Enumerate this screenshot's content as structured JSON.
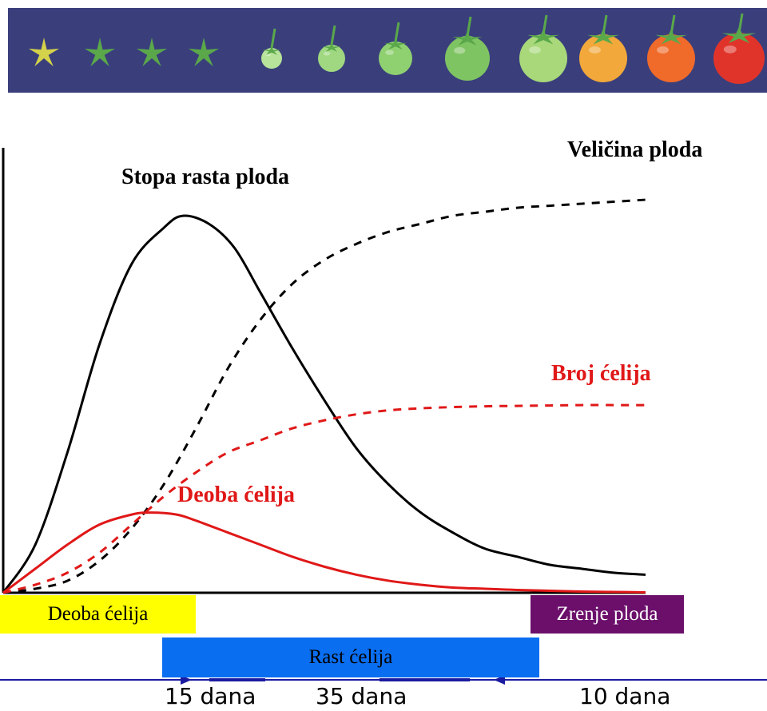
{
  "photo_strip": {
    "stages": [
      {
        "icon": "tomato-flower-icon",
        "color": "#e8e35a"
      },
      {
        "icon": "tomato-calyx-icon",
        "color": "#7fbf5a"
      },
      {
        "icon": "tomato-calyx-icon",
        "color": "#7fbf5a"
      },
      {
        "icon": "tomato-calyx-icon",
        "color": "#8ccf66"
      },
      {
        "icon": "tomato-fruit-icon",
        "color": "#b8e39a"
      },
      {
        "icon": "tomato-fruit-icon",
        "color": "#9fd880"
      },
      {
        "icon": "tomato-fruit-icon",
        "color": "#8fd070"
      },
      {
        "icon": "tomato-fruit-icon",
        "color": "#7fc462"
      },
      {
        "icon": "tomato-fruit-icon",
        "color": "#a8d87a"
      },
      {
        "icon": "tomato-fruit-icon",
        "color": "#f2a83a"
      },
      {
        "icon": "tomato-fruit-icon",
        "color": "#f06a2a"
      },
      {
        "icon": "tomato-fruit-icon",
        "color": "#e0342a"
      }
    ]
  },
  "chart_data": {
    "type": "line",
    "series": [
      {
        "name": "Stopa rasta ploda",
        "color": "#000000",
        "style": "solid",
        "x": [
          0,
          5,
          10,
          15,
          20,
          25,
          28,
          32,
          36,
          40,
          45,
          50,
          55,
          60,
          65,
          70,
          75,
          80,
          85,
          90,
          95,
          100
        ],
        "y": [
          0,
          12,
          35,
          62,
          82,
          91,
          94,
          92,
          86,
          75,
          61,
          48,
          36,
          27,
          20,
          15,
          11,
          9,
          7,
          6,
          5,
          4.5
        ]
      },
      {
        "name": "Veličina ploda",
        "color": "#000000",
        "style": "dashed",
        "x": [
          0,
          5,
          10,
          15,
          20,
          25,
          30,
          35,
          40,
          45,
          50,
          55,
          60,
          65,
          70,
          75,
          80,
          85,
          90,
          95,
          100
        ],
        "y": [
          0,
          1,
          3,
          8,
          16,
          27,
          41,
          56,
          68,
          77,
          83,
          87,
          90,
          92,
          94,
          95,
          96,
          96.5,
          97,
          97.5,
          98
        ]
      },
      {
        "name": "Broj ćelija",
        "color": "#e01818",
        "style": "dashed",
        "x": [
          0,
          5,
          10,
          15,
          20,
          25,
          30,
          35,
          40,
          45,
          50,
          55,
          60,
          65,
          70,
          75,
          80,
          85,
          90,
          95,
          100
        ],
        "y": [
          0,
          2,
          5,
          10,
          17,
          24,
          30,
          35,
          38,
          41,
          43,
          44.5,
          45.5,
          46,
          46.3,
          46.5,
          46.6,
          46.7,
          46.8,
          46.8,
          46.8
        ]
      },
      {
        "name": "Deoba ćelija",
        "color": "#e01818",
        "style": "solid",
        "x": [
          0,
          5,
          10,
          15,
          20,
          23,
          27,
          30,
          35,
          40,
          45,
          50,
          55,
          60,
          65,
          70,
          75,
          80,
          85,
          90,
          95,
          100
        ],
        "y": [
          0,
          6,
          12,
          17,
          19.5,
          20,
          19.5,
          18,
          15,
          12,
          9,
          6.5,
          4.5,
          3,
          2,
          1.3,
          1,
          0.7,
          0.5,
          0.3,
          0.2,
          0.1
        ]
      }
    ],
    "labels": {
      "stopa": "Stopa rasta ploda",
      "velicina": "Veličina ploda",
      "broj": "Broj ćelija",
      "deoba": "Deoba ćelija"
    },
    "xlim": [
      0,
      100
    ],
    "ylim": [
      0,
      100
    ],
    "grid": false
  },
  "phases": {
    "deoba": {
      "label": "Deoba ćelija",
      "color": "#ffff00",
      "text_color": "#000000"
    },
    "rast": {
      "label": "Rast ćelija",
      "color": "#0a6ef0",
      "text_color": "#000000"
    },
    "zrenje": {
      "label": "Zrenje ploda",
      "color": "#6b0f6b",
      "text_color": "#ffffff"
    }
  },
  "timeline": {
    "color": "#1a1aa0",
    "durations": [
      "15 dana",
      "35 dana",
      "10 dana"
    ]
  },
  "colors": {
    "strip_bg": "#3a3f7c",
    "red": "#e01818",
    "black": "#000000"
  }
}
